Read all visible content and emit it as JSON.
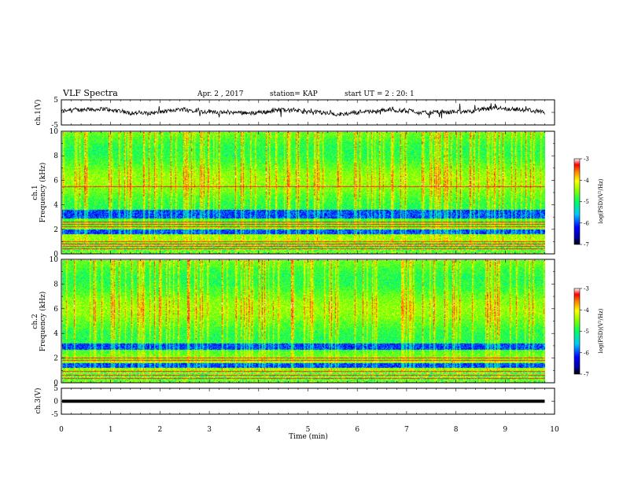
{
  "header": {
    "title": "VLF Spectra",
    "date": "Apr. 2 , 2017",
    "station": "station= KAP",
    "start": "start UT = 2 : 20: 1"
  },
  "chart_data": {
    "type": "heatmap",
    "title": "VLF Spectra",
    "xlabel": "Time (min)",
    "xlim": [
      0,
      10
    ],
    "x_ticks": [
      "0",
      "1",
      "2",
      "3",
      "4",
      "5",
      "6",
      "7",
      "8",
      "9",
      "10"
    ],
    "data_extent_min": 9.8,
    "panels": [
      {
        "name": "ch1-waveform",
        "type": "line",
        "ylabel": "ch.1(V)",
        "ylim": [
          -5,
          5
        ],
        "y_ticks": [
          "5",
          "-5"
        ],
        "baseline_v": 0
      },
      {
        "name": "ch1-spectrogram",
        "type": "heatmap",
        "ylabel": "ch.1",
        "ylabel2": "Frequency (kHz)",
        "ylim": [
          0,
          10
        ],
        "y_ticks": [
          "0",
          "2",
          "4",
          "6",
          "8",
          "10"
        ],
        "colorbar": {
          "label": "log(PSD)(V²/Hz)",
          "range": [
            -7,
            -3
          ],
          "ticks": [
            "-3",
            "-4",
            "-5",
            "-6",
            "-7"
          ]
        },
        "noise_bands_khz": [
          [
            1.6,
            2.0
          ],
          [
            2.9,
            3.6
          ]
        ],
        "line_tones_khz": [
          0.4,
          0.6,
          0.8,
          1.0,
          2.2,
          2.4,
          2.6,
          5.5
        ]
      },
      {
        "name": "ch2-spectrogram",
        "type": "heatmap",
        "ylabel": "ch.2",
        "ylabel2": "Frequency (kHz)",
        "ylim": [
          0,
          10
        ],
        "y_ticks": [
          "0",
          "2",
          "4",
          "6",
          "8",
          "10"
        ],
        "colorbar": {
          "label": "log(PSD)(V²/Hz)",
          "range": [
            -7,
            -3
          ],
          "ticks": [
            "-3",
            "-4",
            "-5",
            "-6",
            "-7"
          ]
        },
        "noise_bands_khz": [
          [
            1.2,
            1.6
          ],
          [
            2.7,
            3.2
          ]
        ],
        "line_tones_khz": [
          0.3,
          0.6,
          0.9,
          1.8,
          2.0
        ]
      },
      {
        "name": "ch3-waveform",
        "type": "line",
        "ylabel": "ch.3(V)",
        "ylim": [
          -5,
          5
        ],
        "y_ticks": [
          "5",
          "0",
          "-5"
        ],
        "baseline_v": 0
      }
    ]
  }
}
